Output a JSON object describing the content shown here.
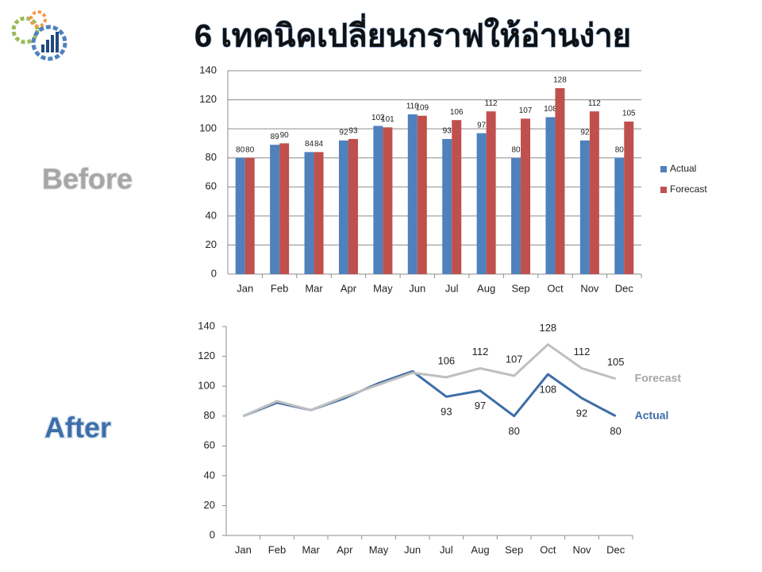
{
  "title": "6 เทคนิคเปลี่ยนกราฟให้อ่านง่าย",
  "before_label": "Before",
  "after_label": "After",
  "chart_data": [
    {
      "type": "bar",
      "categories": [
        "Jan",
        "Feb",
        "Mar",
        "Apr",
        "May",
        "Jun",
        "Jul",
        "Aug",
        "Sep",
        "Oct",
        "Nov",
        "Dec"
      ],
      "series": [
        {
          "name": "Actual",
          "color": "#4f81bd",
          "values": [
            80,
            89,
            84,
            92,
            102,
            110,
            93,
            97,
            80,
            108,
            92,
            80
          ]
        },
        {
          "name": "Forecast",
          "color": "#c0504d",
          "values": [
            80,
            90,
            84,
            93,
            101,
            109,
            106,
            112,
            107,
            128,
            112,
            105
          ]
        }
      ],
      "ylim": [
        0,
        140
      ],
      "yticks": [
        0,
        20,
        40,
        60,
        80,
        100,
        120,
        140
      ],
      "grid": true,
      "legend": "right"
    },
    {
      "type": "line",
      "categories": [
        "Jan",
        "Feb",
        "Mar",
        "Apr",
        "May",
        "Jun",
        "Jul",
        "Aug",
        "Sep",
        "Oct",
        "Nov",
        "Dec"
      ],
      "series": [
        {
          "name": "Actual",
          "color": "#3e6da8",
          "values": [
            80,
            89,
            84,
            92,
            102,
            110,
            93,
            97,
            80,
            108,
            92,
            80
          ],
          "value_labels": [
            null,
            null,
            null,
            null,
            null,
            null,
            "93",
            "97",
            "80",
            "108",
            "92",
            "80"
          ]
        },
        {
          "name": "Forecast",
          "color": "#bfbfbf",
          "values": [
            80,
            90,
            84,
            93,
            101,
            109,
            106,
            112,
            107,
            128,
            112,
            105
          ],
          "value_labels": [
            null,
            null,
            null,
            null,
            null,
            null,
            "106",
            "112",
            "107",
            "128",
            "112",
            "105"
          ]
        }
      ],
      "ylim": [
        0,
        140
      ],
      "yticks": [
        0,
        20,
        40,
        60,
        80,
        100,
        120,
        140
      ],
      "grid": false,
      "legend": "line-end"
    }
  ]
}
